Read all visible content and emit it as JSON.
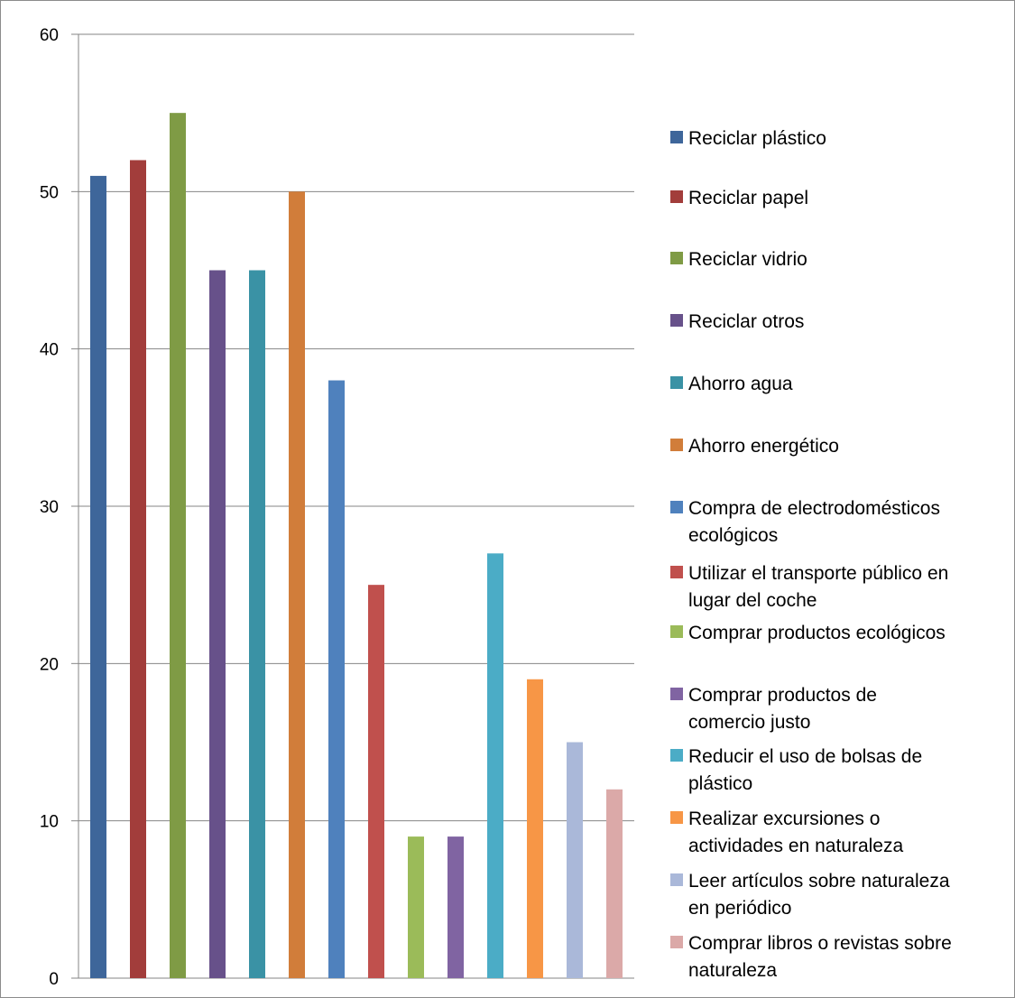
{
  "chart_data": {
    "type": "bar",
    "title": "",
    "xlabel": "",
    "ylabel": "",
    "ylim": [
      0,
      60
    ],
    "yticks": [
      0,
      10,
      20,
      30,
      40,
      50,
      60
    ],
    "grid": true,
    "legend_position": "right",
    "series": [
      {
        "name": "Reciclar plástico",
        "value": 51,
        "color": "#3e669a"
      },
      {
        "name": "Reciclar papel",
        "value": 52,
        "color": "#a23d3b"
      },
      {
        "name": "Reciclar vidrio",
        "value": 55,
        "color": "#7f9b45"
      },
      {
        "name": "Reciclar otros",
        "value": 45,
        "color": "#67518a"
      },
      {
        "name": "Ahorro agua",
        "value": 45,
        "color": "#3a92a5"
      },
      {
        "name": "Ahorro energético",
        "value": 50,
        "color": "#d17d3a"
      },
      {
        "name": "Compra de electrodomésticos ecológicos",
        "value": 38,
        "color": "#4f81bd"
      },
      {
        "name": "Utilizar el transporte público en lugar del coche",
        "value": 25,
        "color": "#c0504d"
      },
      {
        "name": "Comprar productos ecológicos",
        "value": 9,
        "color": "#9bbb59"
      },
      {
        "name": "Comprar productos de comercio justo",
        "value": 9,
        "color": "#8064a2"
      },
      {
        "name": "Reducir el uso de bolsas de plástico",
        "value": 27,
        "color": "#4bacc6"
      },
      {
        "name": "Realizar excursiones o actividades en naturaleza",
        "value": 19,
        "color": "#f79646"
      },
      {
        "name": "Leer artículos sobre naturaleza en periódico",
        "value": 15,
        "color": "#aab8d9"
      },
      {
        "name": "Comprar libros o revistas sobre naturaleza",
        "value": 12,
        "color": "#dba9a8"
      }
    ],
    "legend_lines": [
      [
        "Reciclar plástico"
      ],
      [
        "Reciclar papel"
      ],
      [
        "Reciclar vidrio"
      ],
      [
        "Reciclar otros"
      ],
      [
        "Ahorro agua"
      ],
      [
        "Ahorro energético"
      ],
      [
        "Compra de electrodomésticos",
        "ecológicos"
      ],
      [
        "Utilizar el transporte público en",
        "lugar del coche"
      ],
      [
        "Comprar productos ecológicos"
      ],
      [
        "Comprar productos de",
        "comercio justo"
      ],
      [
        "Reducir el uso de bolsas de",
        "plástico"
      ],
      [
        "Realizar excursiones o",
        "actividades en naturaleza"
      ],
      [
        "Leer artículos sobre naturaleza",
        "en periódico"
      ],
      [
        "Comprar libros o revistas sobre",
        "naturaleza"
      ]
    ]
  }
}
